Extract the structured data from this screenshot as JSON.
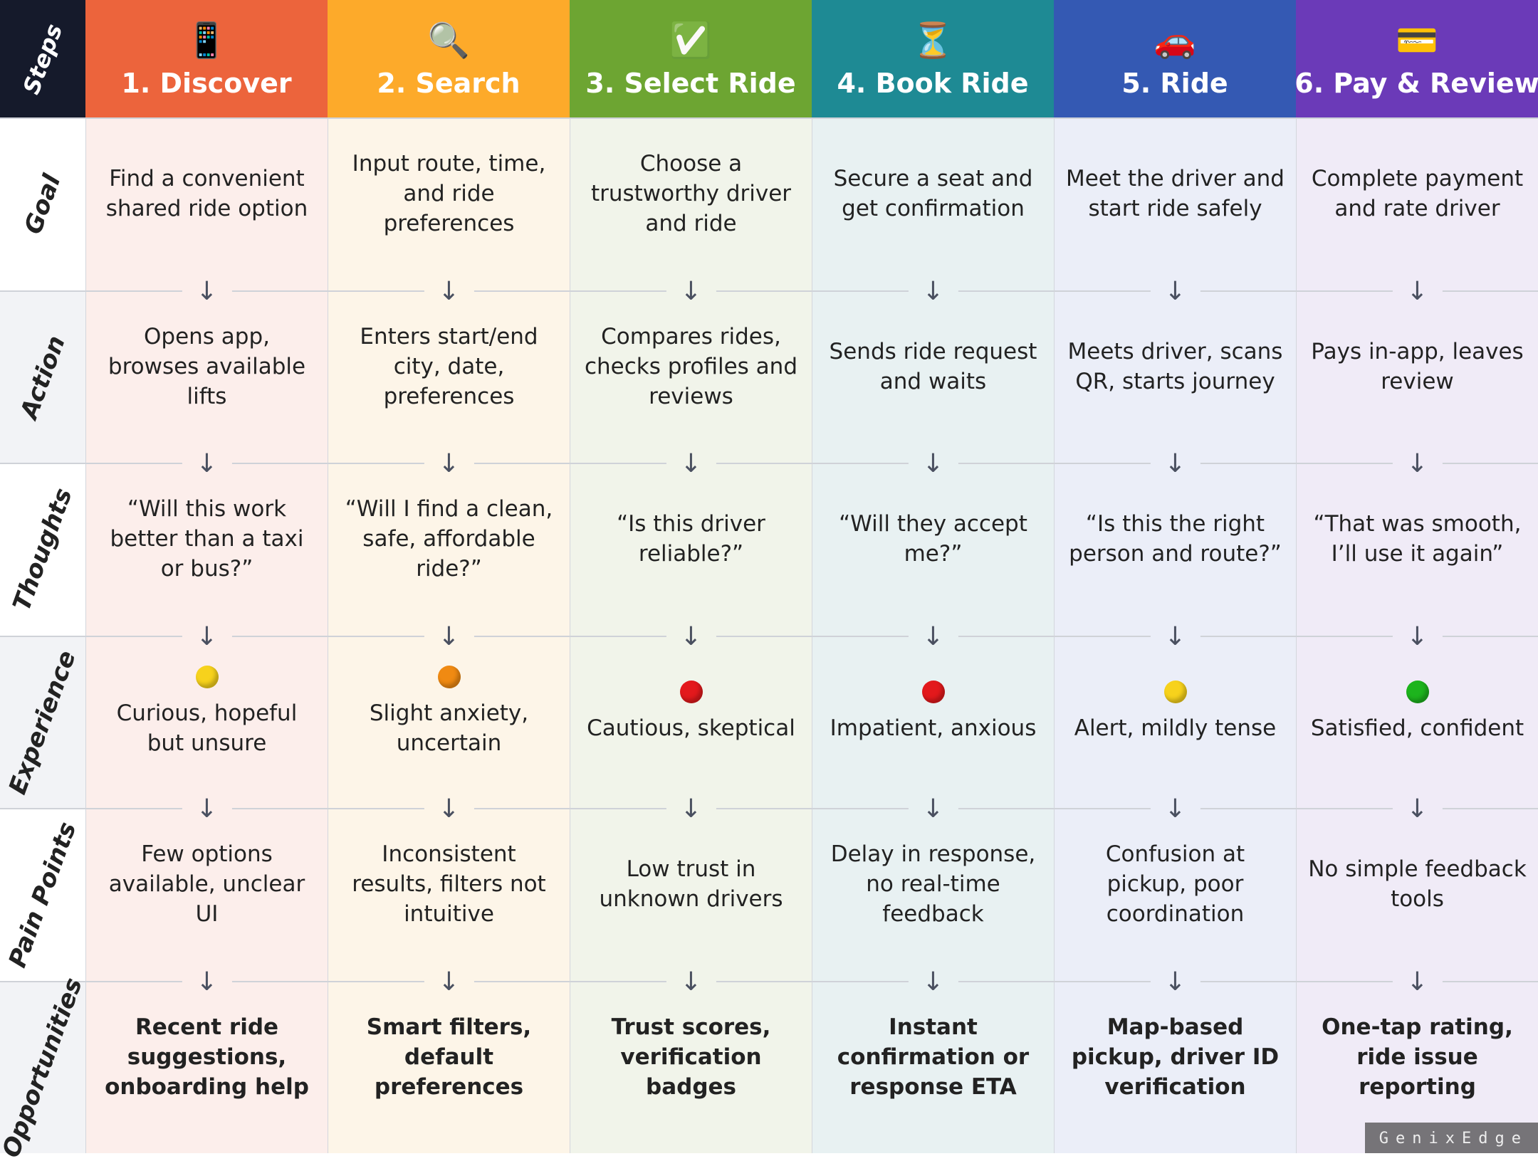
{
  "corner_label": "Steps",
  "row_labels": [
    "Goal",
    "Action",
    "Thoughts",
    "Experience",
    "Pain Points",
    "Opportunities"
  ],
  "steps": [
    {
      "icon": "📱",
      "icon_name": "mobile-phone-icon",
      "title": "1. Discover",
      "color": "#EC643C",
      "bg": "#FCEEEB",
      "goal": "Find a convenient shared ride option",
      "action": "Opens app, browses available lifts",
      "thoughts": "“Will this work better than a taxi or bus?”",
      "experience": "Curious, hopeful but unsure",
      "experience_color": "#F7D21C",
      "pain": "Few options available, unclear UI",
      "opportunity": "Recent ride suggestions, onboarding help"
    },
    {
      "icon": "🔍",
      "icon_name": "magnifier-icon",
      "title": "2. Search",
      "color": "#FDAA2A",
      "bg": "#FDF5E8",
      "goal": "Input route, time, and ride preferences",
      "action": "Enters start/end city, date, preferences",
      "thoughts": "“Will I find a clean, safe, affordable ride?”",
      "experience": "Slight anxiety, uncertain",
      "experience_color": "#F08A12",
      "pain": "Inconsistent results, filters not intuitive",
      "opportunity": "Smart filters, default preferences"
    },
    {
      "icon": "✅",
      "icon_name": "check-mark-icon",
      "title": "3. Select Ride",
      "color": "#6DA532",
      "bg": "#F1F4EA",
      "goal": "Choose a trustworthy driver and ride",
      "action": "Compares rides, checks profiles and reviews",
      "thoughts": "“Is this driver reliable?”",
      "experience": "Cautious, skeptical",
      "experience_color": "#E3191C",
      "pain": "Low trust in unknown drivers",
      "opportunity": "Trust scores, verification badges"
    },
    {
      "icon": "⏳",
      "icon_name": "hourglass-icon",
      "title": "4. Book Ride",
      "color": "#1E8A94",
      "bg": "#E8F1F2",
      "goal": "Secure a seat and get confirmation",
      "action": "Sends ride request and waits",
      "thoughts": "“Will they accept me?”",
      "experience": "Impatient, anxious",
      "experience_color": "#E3191C",
      "pain": "Delay in response, no real-time feedback",
      "opportunity": "Instant confirmation or response ETA"
    },
    {
      "icon": "🚗",
      "icon_name": "car-icon",
      "title": "5. Ride",
      "color": "#3459B3",
      "bg": "#EBEEF8",
      "goal": "Meet the driver and start ride safely",
      "action": "Meets driver, scans QR, starts journey",
      "thoughts": "“Is this the right person and route?”",
      "experience": "Alert, mildly tense",
      "experience_color": "#F7D21C",
      "pain": "Confusion at pickup, poor coordination",
      "opportunity": "Map-based pickup, driver ID verification"
    },
    {
      "icon": "💳",
      "icon_name": "credit-card-icon",
      "title": "6. Pay & Review",
      "color": "#6B3AB8",
      "bg": "#F0EBF7",
      "goal": "Complete payment and rate driver",
      "action": "Pays in-app, leaves review",
      "thoughts": "“That was smooth, I’ll use it again”",
      "experience": "Satisfied, confident",
      "experience_color": "#1DB41D",
      "pain": "No simple feedback tools",
      "opportunity": "One-tap rating, ride issue reporting"
    }
  ],
  "watermark": "GenixEdge"
}
